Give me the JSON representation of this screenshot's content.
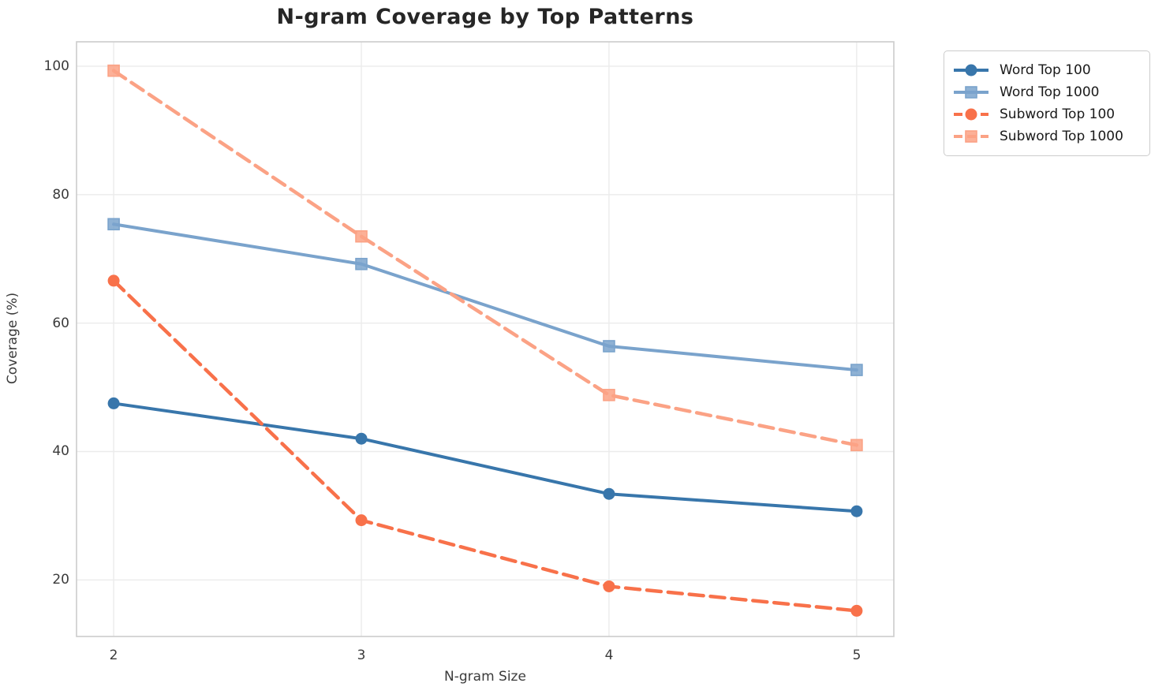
{
  "title": "N-gram Coverage by Top Patterns",
  "chart_data": {
    "type": "line",
    "title": "N-gram Coverage by Top Patterns",
    "xlabel": "N-gram Size",
    "ylabel": "Coverage (%)",
    "x": [
      2,
      3,
      4,
      5
    ],
    "xtick_labels": [
      "2",
      "3",
      "4",
      "5"
    ],
    "ytick_labels": [
      "20",
      "40",
      "60",
      "80",
      "100"
    ],
    "ytick_values": [
      20,
      40,
      60,
      80,
      100
    ],
    "xlim": [
      1.85,
      5.15
    ],
    "ylim": [
      11.2,
      103.8
    ],
    "grid": true,
    "legend_position": "outside-top-right",
    "series": [
      {
        "name": "Word Top 100",
        "values": [
          47.5,
          42.0,
          33.4,
          30.7
        ],
        "color": "#3876ab",
        "marker": "circle",
        "line_style": "solid"
      },
      {
        "name": "Word Top 1000",
        "values": [
          75.4,
          69.2,
          56.4,
          52.7
        ],
        "color": "#7aa3cc",
        "marker": "square",
        "line_style": "solid"
      },
      {
        "name": "Subword Top 100",
        "values": [
          66.6,
          29.3,
          19.0,
          15.2
        ],
        "color": "#f8714a",
        "marker": "circle",
        "line_style": "dashed"
      },
      {
        "name": "Subword Top 1000",
        "values": [
          99.3,
          73.5,
          48.8,
          41.0
        ],
        "color": "#fba285",
        "marker": "square",
        "line_style": "dashed"
      }
    ],
    "grid_color": "#ebebeb",
    "spine_color": "#cccccc"
  }
}
